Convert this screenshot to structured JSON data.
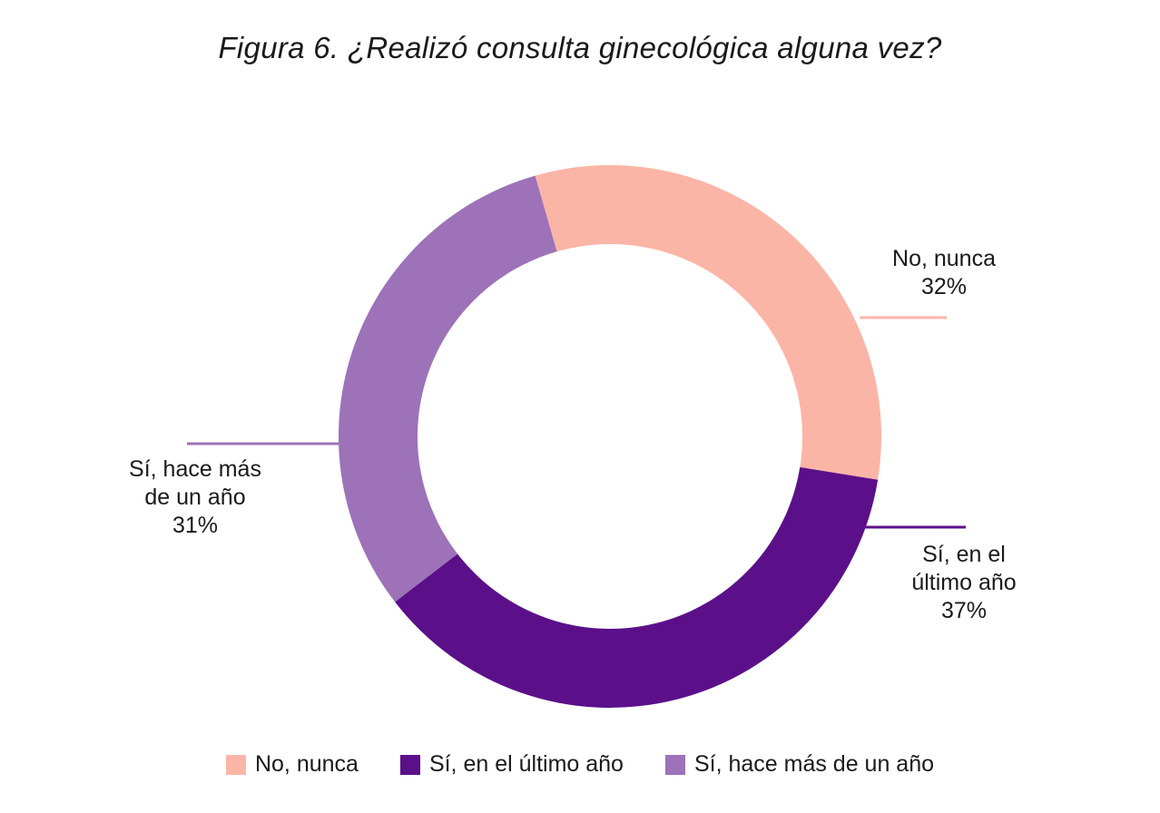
{
  "chart_data": {
    "type": "pie",
    "title": "Figura 6. ¿Realizó consulta ginecológica alguna vez?",
    "legend_position": "bottom",
    "slices": [
      {
        "label": "No, nunca",
        "label_lines": [
          "No, nunca"
        ],
        "value": 32,
        "value_label": "32%",
        "color": "#fbb5a6"
      },
      {
        "label": "Sí, en el último año",
        "label_lines": [
          "Sí, en el",
          "último año"
        ],
        "value": 37,
        "value_label": "37%",
        "color": "#5b108a"
      },
      {
        "label": "Sí, hace más de un año",
        "label_lines": [
          "Sí, hace más",
          "de un año"
        ],
        "value": 31,
        "value_label": "31%",
        "color": "#9d72b8"
      }
    ]
  }
}
